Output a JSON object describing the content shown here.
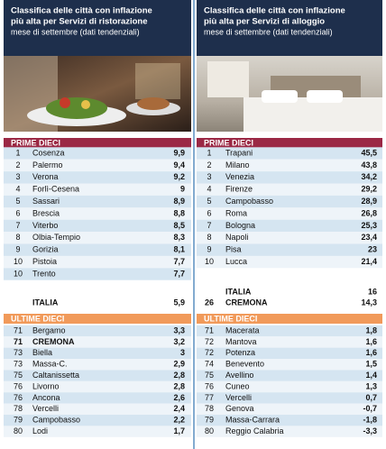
{
  "panels": [
    {
      "title": [
        "Classifica delle città con inflazione",
        "più alta per Servizi di ristorazione"
      ],
      "subtitle": "mese di settembre (dati tendenziali)",
      "top": {
        "heading": "PRIME DIECI",
        "color": "#9b2845",
        "rows": [
          {
            "rank": 1,
            "city": "Cosenza",
            "value": 9.9,
            "label": "9,9"
          },
          {
            "rank": 2,
            "city": "Palermo",
            "value": 9.4,
            "label": "9,4"
          },
          {
            "rank": 3,
            "city": "Verona",
            "value": 9.2,
            "label": "9,2"
          },
          {
            "rank": 4,
            "city": "Forlì-Cesena",
            "value": 9
          },
          {
            "rank": 5,
            "city": "Sassari",
            "value": 8.9,
            "label": "8,9"
          },
          {
            "rank": 6,
            "city": "Brescia",
            "value": 8.8,
            "label": "8,8"
          },
          {
            "rank": 7,
            "city": "Viterbo",
            "value": 8.5,
            "label": "8,5"
          },
          {
            "rank": 8,
            "city": "Olbia-Tempio",
            "value": 8.3,
            "label": "8,3"
          },
          {
            "rank": 9,
            "city": "Gorizia",
            "value": 8.1,
            "label": "8,1"
          },
          {
            "rank": 10,
            "city": "Pistoia",
            "value": 7.7,
            "label": "7,7"
          },
          {
            "rank": 10,
            "city": "Trento",
            "value": 7.7,
            "label": "7,7"
          }
        ]
      },
      "summary": [
        {
          "city": "ITALIA",
          "value": 5.9,
          "label": "5,9",
          "color": "#d3758a"
        }
      ],
      "bottom": {
        "heading": "ULTIME DIECI",
        "color": "#f19a5a",
        "rows": [
          {
            "rank": 71,
            "city": "Bergamo",
            "value": 3.3,
            "label": "3,3"
          },
          {
            "rank": 71,
            "city": "CREMONA",
            "value": 3.2,
            "label": "3,2",
            "color": "#e07a8c"
          },
          {
            "rank": 73,
            "city": "Biella",
            "value": 3
          },
          {
            "rank": 73,
            "city": "Massa-C.",
            "value": 2.9,
            "label": "2,9"
          },
          {
            "rank": 75,
            "city": "Caltanissetta",
            "value": 2.8,
            "label": "2,8"
          },
          {
            "rank": 76,
            "city": "Livorno",
            "value": 2.8,
            "label": "2,8"
          },
          {
            "rank": 76,
            "city": "Ancona",
            "value": 2.6,
            "label": "2,6"
          },
          {
            "rank": 78,
            "city": "Vercelli",
            "value": 2.4,
            "label": "2,4"
          },
          {
            "rank": 79,
            "city": "Campobasso",
            "value": 2.2,
            "label": "2,2"
          },
          {
            "rank": 80,
            "city": "Lodi",
            "value": 1.7,
            "label": "1,7"
          }
        ]
      }
    },
    {
      "title": [
        "Classifica delle città con inflazione",
        "più alta per Servizi di alloggio"
      ],
      "subtitle": "mese di settembre (dati tendenziali)",
      "top": {
        "heading": "PRIME DIECI",
        "color": "#9b2845",
        "rows": [
          {
            "rank": 1,
            "city": "Trapani",
            "value": 45.5,
            "label": "45,5"
          },
          {
            "rank": 2,
            "city": "Milano",
            "value": 43.8,
            "label": "43,8"
          },
          {
            "rank": 3,
            "city": "Venezia",
            "value": 34.2,
            "label": "34,2"
          },
          {
            "rank": 4,
            "city": "Firenze",
            "value": 29.2,
            "label": "29,2"
          },
          {
            "rank": 5,
            "city": "Campobasso",
            "value": 28.9,
            "label": "28,9"
          },
          {
            "rank": 6,
            "city": "Roma",
            "value": 26.8,
            "label": "26,8"
          },
          {
            "rank": 7,
            "city": "Bologna",
            "value": 25.3,
            "label": "25,3"
          },
          {
            "rank": 8,
            "city": "Napoli",
            "value": 23.4,
            "label": "23,4"
          },
          {
            "rank": 9,
            "city": "Pisa",
            "value": 23
          },
          {
            "rank": 10,
            "city": "Lucca",
            "value": 21.4,
            "label": "21,4"
          }
        ]
      },
      "summary": [
        {
          "city": "ITALIA",
          "value": 16,
          "color": "#d3758a"
        },
        {
          "rank": 26,
          "city": "CREMONA",
          "value": 14.3,
          "label": "14,3",
          "color": "#d3758a"
        }
      ],
      "bottom": {
        "heading": "ULTIME DIECI",
        "color": "#f19a5a",
        "rows": [
          {
            "rank": 71,
            "city": "Macerata",
            "value": 1.8,
            "label": "1,8"
          },
          {
            "rank": 72,
            "city": "Mantova",
            "value": 1.6,
            "label": "1,6"
          },
          {
            "rank": 72,
            "city": "Potenza",
            "value": 1.6,
            "label": "1,6"
          },
          {
            "rank": 74,
            "city": "Benevento",
            "value": 1.5,
            "label": "1,5"
          },
          {
            "rank": 75,
            "city": "Avellino",
            "value": 1.4,
            "label": "1,4"
          },
          {
            "rank": 76,
            "city": "Cuneo",
            "value": 1.3,
            "label": "1,3"
          },
          {
            "rank": 77,
            "city": "Vercelli",
            "value": 0.7,
            "label": "0,7"
          },
          {
            "rank": 78,
            "city": "Genova",
            "value": -0.7,
            "label": "-0,7"
          },
          {
            "rank": 79,
            "city": "Massa-Carrara",
            "value": -1.8,
            "label": "-1,8"
          },
          {
            "rank": 80,
            "city": "Reggio Calabria",
            "value": -3.3,
            "label": "-3,3"
          }
        ]
      }
    }
  ]
}
